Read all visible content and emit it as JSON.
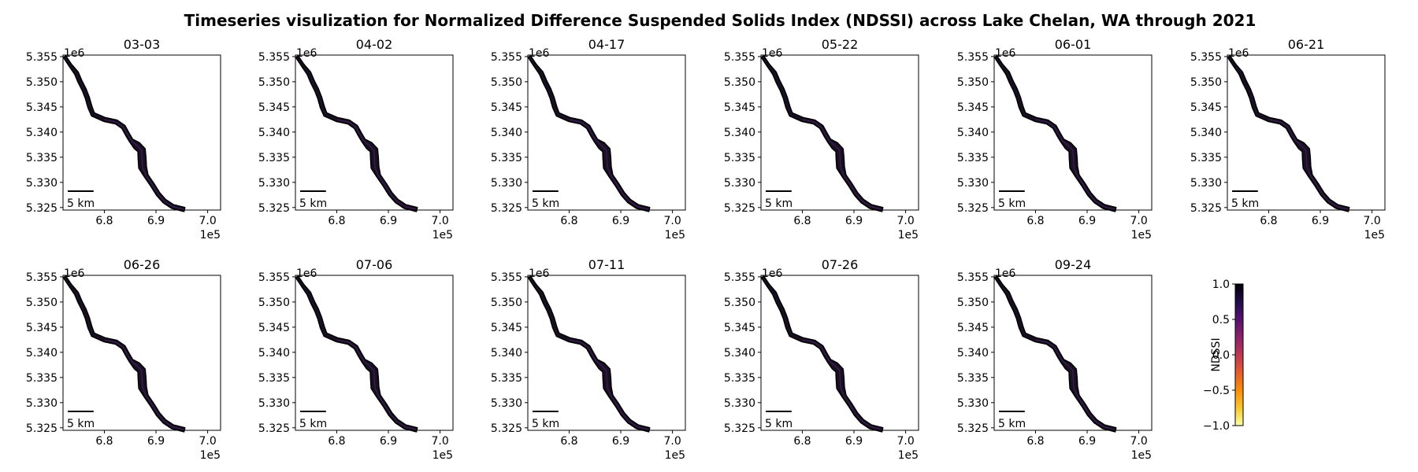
{
  "figure": {
    "title": "Timeseries visulization for Normalized Difference Suspended Solids Index (NDSSI) across Lake Chelan, WA through 2021"
  },
  "panel_axes": {
    "x_ticks": [
      "6.8",
      "6.9",
      "7.0"
    ],
    "x_tick_values": [
      680000,
      690000,
      700000
    ],
    "x_offset_label": "1e5",
    "y_ticks": [
      "5.355",
      "5.350",
      "5.345",
      "5.340",
      "5.335",
      "5.330",
      "5.325"
    ],
    "y_tick_values": [
      5355000,
      5350000,
      5345000,
      5340000,
      5335000,
      5330000,
      5325000
    ],
    "y_offset_label": "1e6",
    "xlim": [
      672000,
      702500
    ],
    "ylim": [
      5324500,
      5355300
    ],
    "scalebar_label": "5 km",
    "scalebar_length": 5000
  },
  "panels": [
    {
      "date": "03-03"
    },
    {
      "date": "04-02"
    },
    {
      "date": "04-17"
    },
    {
      "date": "05-22"
    },
    {
      "date": "06-01"
    },
    {
      "date": "06-21"
    },
    {
      "date": "06-26"
    },
    {
      "date": "07-06"
    },
    {
      "date": "07-11"
    },
    {
      "date": "07-26"
    },
    {
      "date": "09-24"
    }
  ],
  "lake_outline_utm": [
    [
      672300,
      5355000
    ],
    [
      673400,
      5353300
    ],
    [
      674600,
      5351700
    ],
    [
      675300,
      5350000
    ],
    [
      676100,
      5348400
    ],
    [
      676700,
      5346800
    ],
    [
      677200,
      5345000
    ],
    [
      677800,
      5343500
    ],
    [
      680000,
      5342500
    ],
    [
      682300,
      5342000
    ],
    [
      683700,
      5341000
    ],
    [
      684500,
      5339500
    ],
    [
      685200,
      5338300
    ],
    [
      686300,
      5337300
    ],
    [
      687200,
      5336400
    ],
    [
      687300,
      5334800
    ],
    [
      687400,
      5333000
    ],
    [
      688100,
      5331300
    ],
    [
      689300,
      5329500
    ],
    [
      690400,
      5327700
    ],
    [
      691600,
      5326300
    ],
    [
      693200,
      5325200
    ],
    [
      695500,
      5324600
    ]
  ],
  "colorbar": {
    "label": "NDSSI",
    "ticks": [
      "1.0",
      "0.5",
      "0.0",
      "−0.5",
      "−1.0"
    ],
    "tick_values": [
      1.0,
      0.5,
      0.0,
      -0.5,
      -1.0
    ],
    "range": [
      -1.0,
      1.0
    ],
    "colormap": "inferno",
    "stops": [
      "#fcffa4",
      "#fac62d",
      "#f98e09",
      "#e55c30",
      "#bc3754",
      "#8a226a",
      "#57106e",
      "#210c4a",
      "#000004"
    ]
  },
  "colors": {
    "lake_water": "#1a1024",
    "lake_tint": "#5a2a80",
    "axes": "#000000"
  }
}
